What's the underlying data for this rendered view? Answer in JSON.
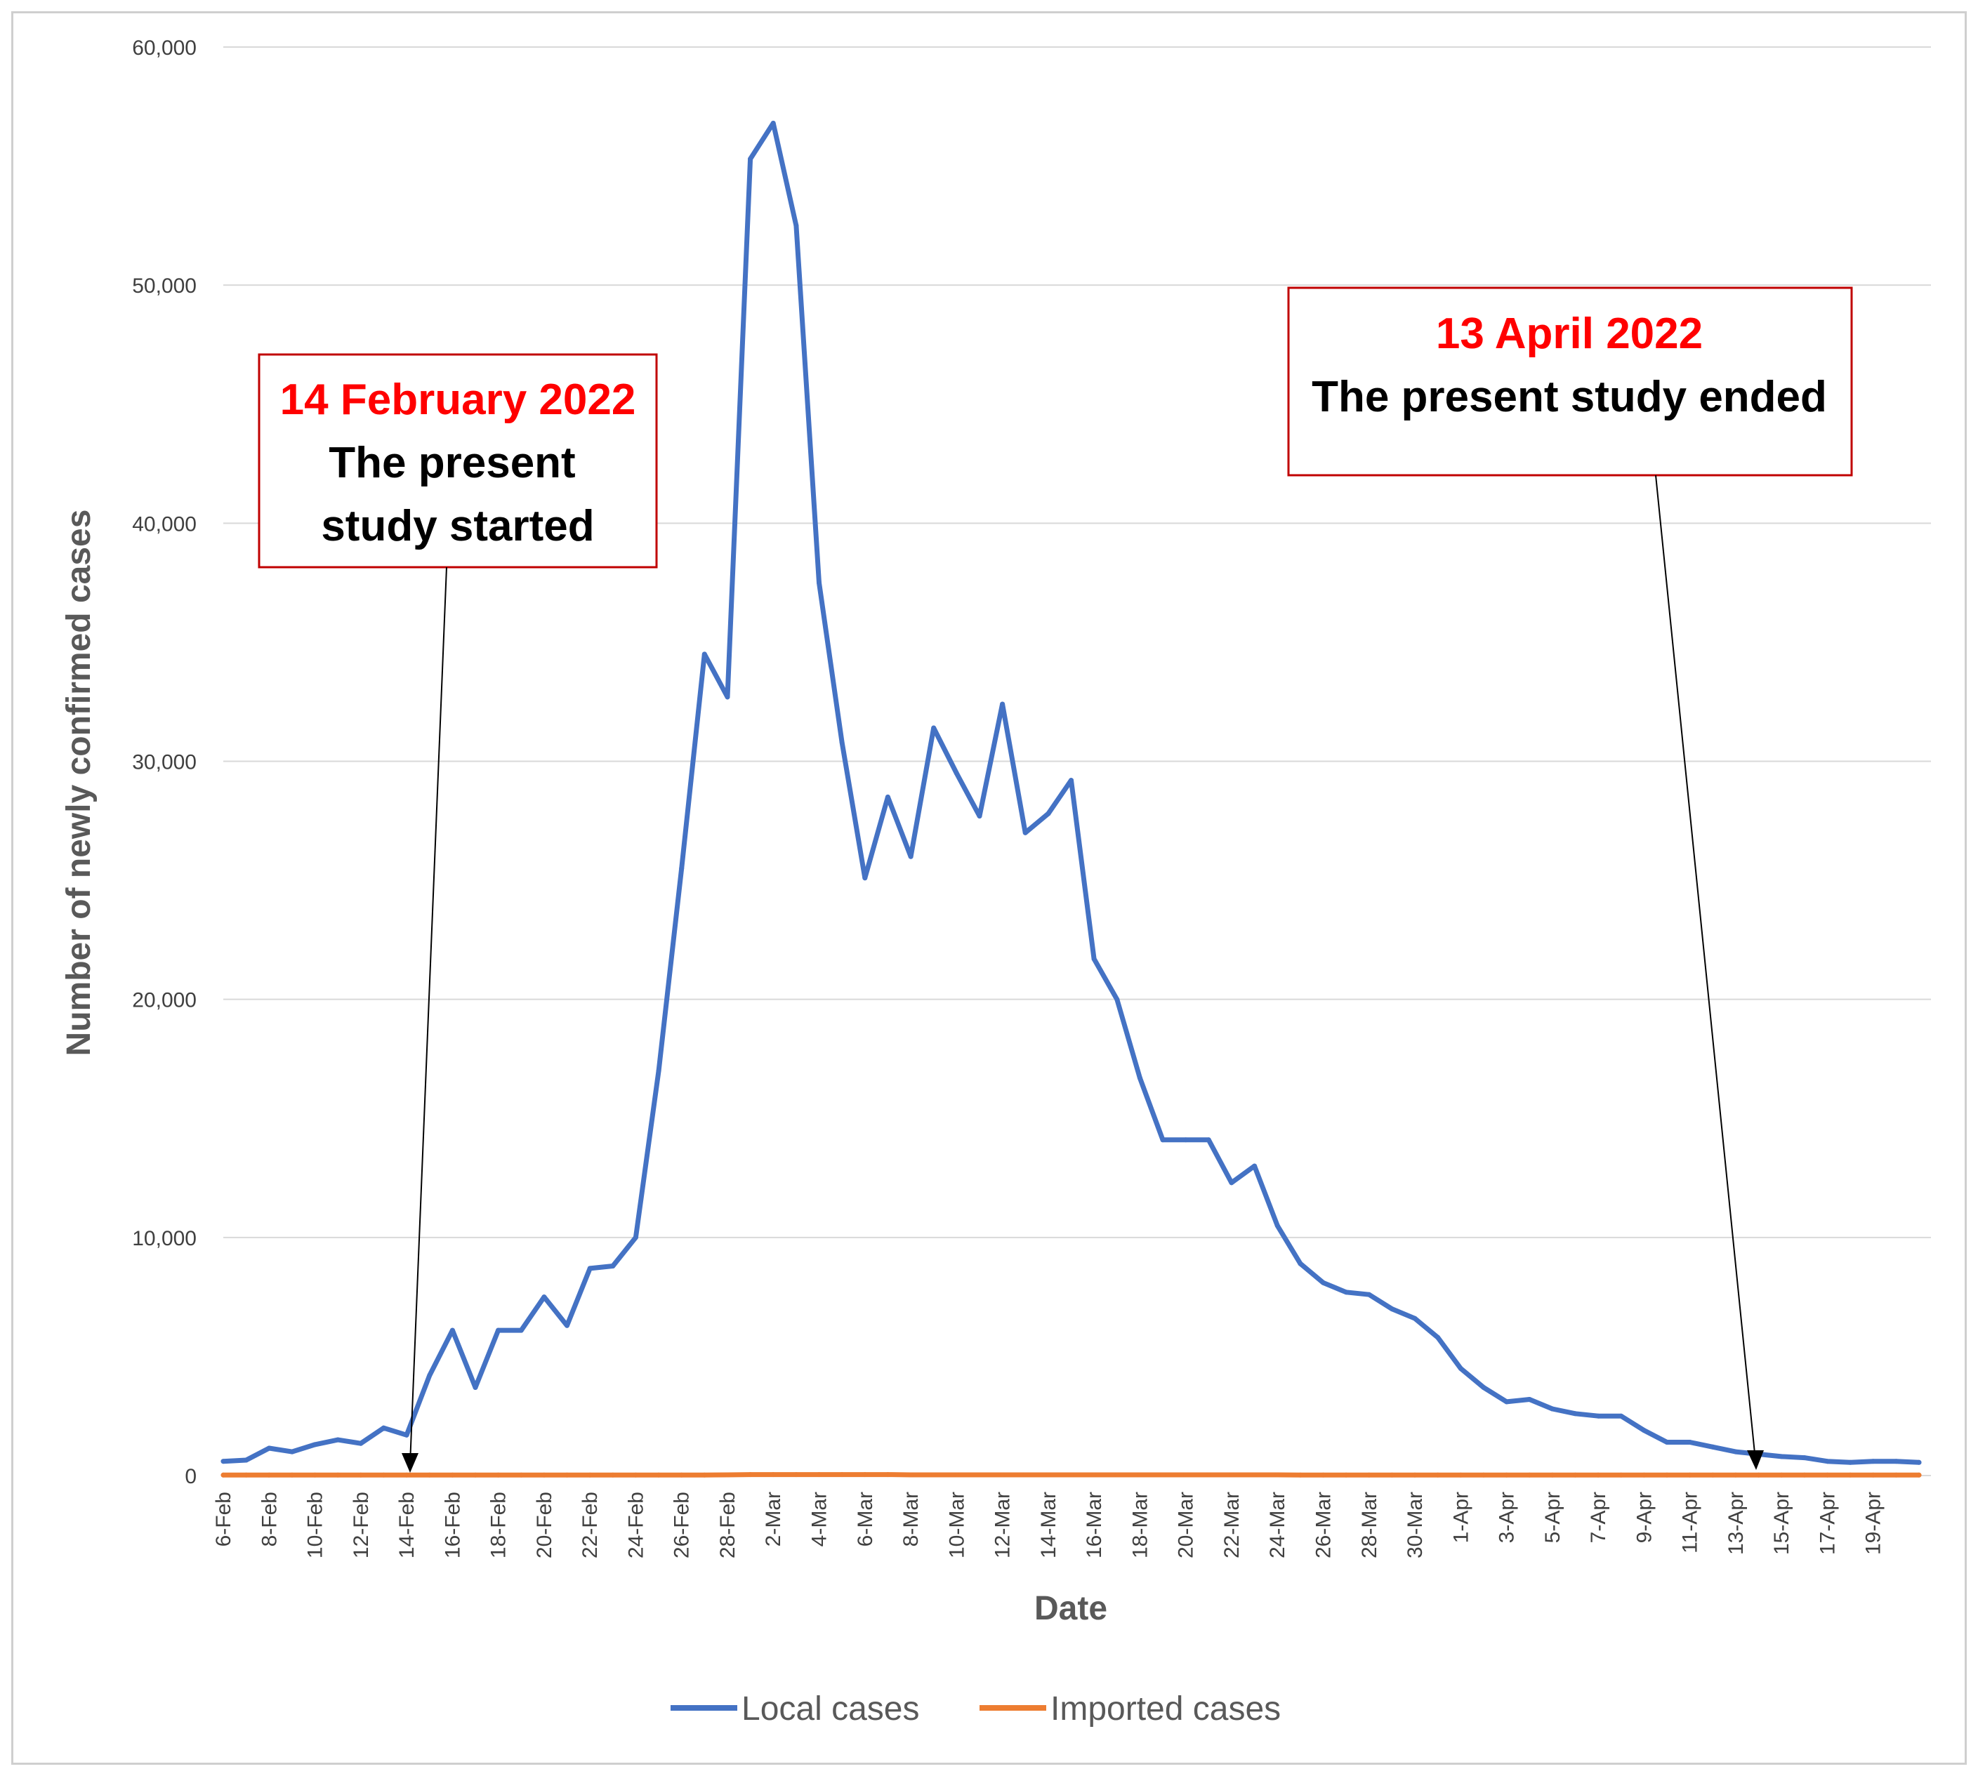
{
  "chart_data": {
    "type": "line",
    "title": "",
    "xlabel": "Date",
    "ylabel": "Number of newly confirmed cases",
    "ylim": [
      0,
      60000
    ],
    "y_ticks": [
      "0",
      "10,000",
      "20,000",
      "30,000",
      "40,000",
      "50,000",
      "60,000"
    ],
    "grid": true,
    "legend_position": "bottom",
    "x_tick_labels": [
      "6-Feb",
      "8-Feb",
      "10-Feb",
      "12-Feb",
      "14-Feb",
      "16-Feb",
      "18-Feb",
      "20-Feb",
      "22-Feb",
      "24-Feb",
      "26-Feb",
      "28-Feb",
      "2-Mar",
      "4-Mar",
      "6-Mar",
      "8-Mar",
      "10-Mar",
      "12-Mar",
      "14-Mar",
      "16-Mar",
      "18-Mar",
      "20-Mar",
      "22-Mar",
      "24-Mar",
      "26-Mar",
      "28-Mar",
      "30-Mar",
      "1-Apr",
      "3-Apr",
      "5-Apr",
      "7-Apr",
      "9-Apr",
      "11-Apr",
      "13-Apr",
      "15-Apr",
      "17-Apr",
      "19-Apr"
    ],
    "x_count": 75,
    "series": [
      {
        "name": "Local cases",
        "color": "#4472c4",
        "values": [
          600,
          650,
          1150,
          1000,
          1300,
          1500,
          1350,
          2000,
          1700,
          4200,
          6100,
          3700,
          6100,
          6100,
          7500,
          6300,
          8700,
          8800,
          10000,
          17000,
          25500,
          34500,
          32700,
          55300,
          56800,
          52500,
          37500,
          30800,
          25100,
          28500,
          26000,
          31400,
          29500,
          27700,
          32400,
          27000,
          27800,
          29200,
          21700,
          20000,
          16700,
          14100,
          14100,
          14100,
          12300,
          13000,
          10500,
          8900,
          8100,
          7700,
          7600,
          7000,
          6600,
          5800,
          4500,
          3700,
          3100,
          3200,
          2800,
          2600,
          2500,
          2500,
          1900,
          1400,
          1400,
          1200,
          1000,
          900,
          800,
          750,
          600,
          550,
          600,
          600,
          550
        ]
      },
      {
        "name": "Imported cases",
        "color": "#ed7d31",
        "values": [
          20,
          20,
          20,
          20,
          20,
          20,
          20,
          20,
          20,
          20,
          20,
          20,
          20,
          20,
          20,
          20,
          20,
          20,
          20,
          20,
          20,
          20,
          30,
          40,
          40,
          40,
          40,
          40,
          40,
          40,
          30,
          30,
          30,
          30,
          30,
          30,
          30,
          30,
          30,
          30,
          30,
          30,
          30,
          30,
          30,
          30,
          30,
          20,
          20,
          20,
          20,
          20,
          20,
          20,
          20,
          20,
          20,
          20,
          20,
          20,
          20,
          20,
          20,
          20,
          20,
          20,
          20,
          20,
          20,
          20,
          20,
          20,
          20,
          20,
          20
        ]
      }
    ],
    "annotations": [
      {
        "date": "14 February 2022",
        "text_lines": [
          "The present",
          "study started"
        ],
        "x_index": 8
      },
      {
        "date": "13 April 2022",
        "text_lines": [
          "The present study ended"
        ],
        "x_index": 66
      }
    ]
  },
  "colors": {
    "local": "#4472c4",
    "imported": "#ed7d31",
    "grid": "#d9d9d9",
    "annotation_red": "#ff0000",
    "box_border": "#c00000"
  }
}
